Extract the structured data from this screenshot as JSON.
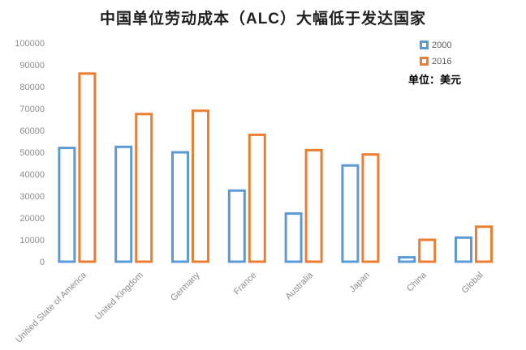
{
  "title": "中国单位劳动成本（ALC）大幅低于发达国家",
  "unit_label": "单位：美元",
  "legend": {
    "items": [
      {
        "label": "2000",
        "color": "#5B9BD5"
      },
      {
        "label": "2016",
        "color": "#ED7D31"
      }
    ]
  },
  "colors": {
    "series_2000": "#5B9BD5",
    "series_2016": "#ED7D31",
    "axis_text": "#8C8C8C",
    "legend_text": "#595959",
    "title_text": "#1F1F1F",
    "background": "#FFFFFF"
  },
  "chart_data": {
    "type": "bar",
    "title": "中国单位劳动成本（ALC）大幅低于发达国家",
    "unit": "美元",
    "categories": [
      "Unitied State of America",
      "United Kingdom",
      "Germany",
      "France",
      "Australia",
      "Japan",
      "China",
      "Global"
    ],
    "series": [
      {
        "name": "2000",
        "color": "#5B9BD5",
        "values": [
          52000,
          52500,
          50000,
          32500,
          22000,
          44000,
          2000,
          11000
        ]
      },
      {
        "name": "2016",
        "color": "#ED7D31",
        "values": [
          86000,
          67500,
          69000,
          58000,
          51000,
          49000,
          10000,
          16000
        ]
      }
    ],
    "xlabel": "",
    "ylabel": "",
    "ylim": [
      0,
      100000
    ],
    "ytick_step": 10000,
    "grid": false,
    "legend_position": "top-right",
    "bar_style": "outlined",
    "xtick_rotation": 45
  }
}
